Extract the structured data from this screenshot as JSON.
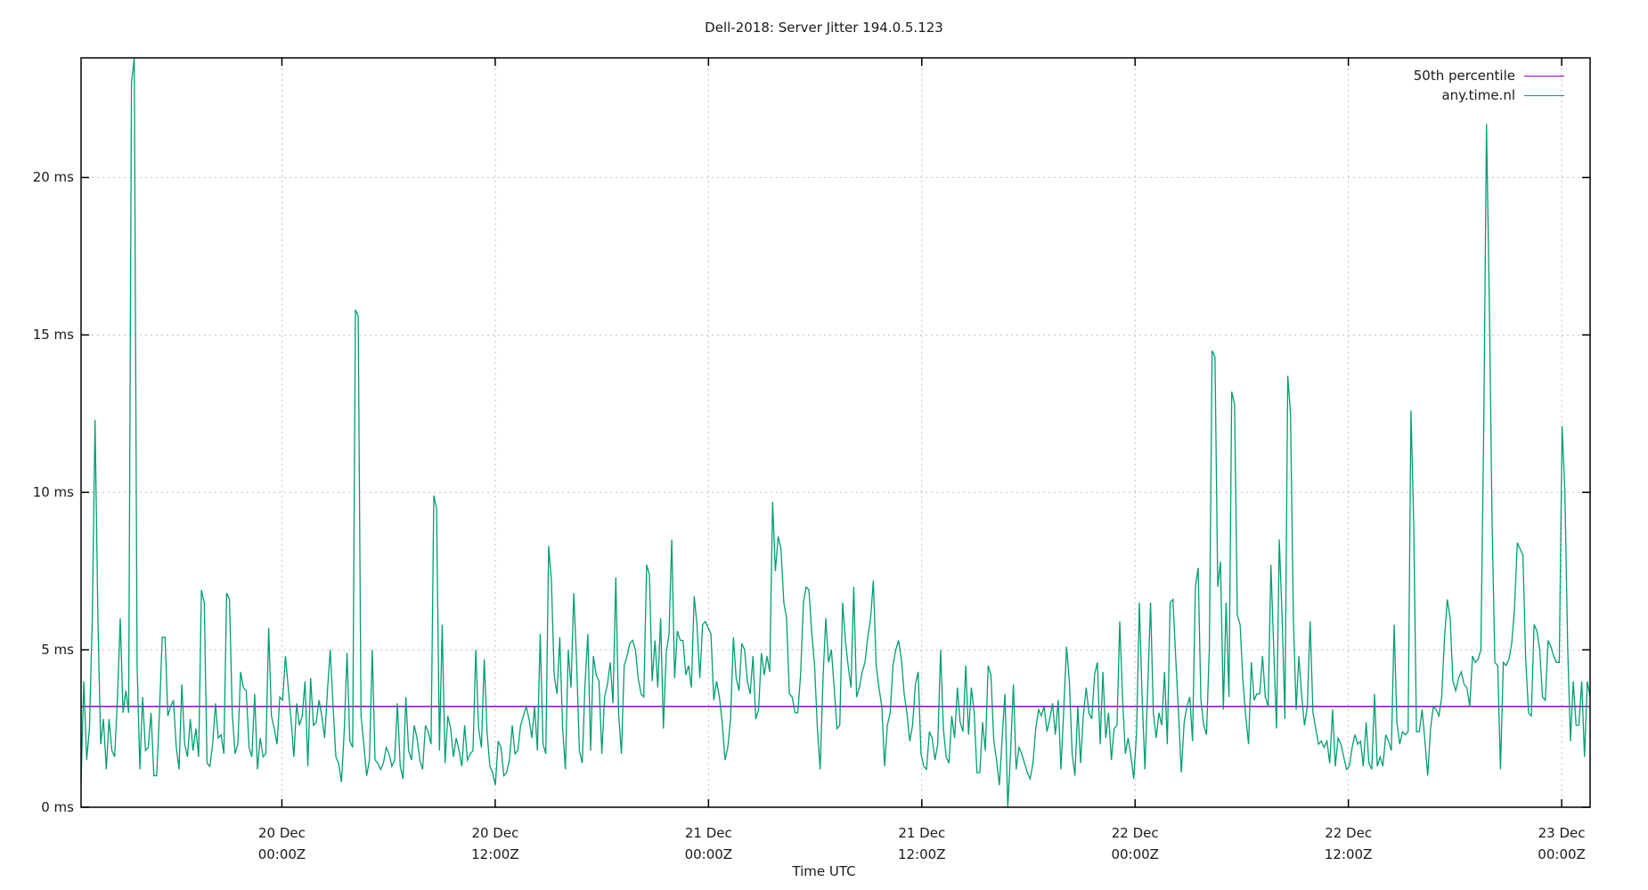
{
  "title": "Dell-2018: Server Jitter 194.0.5.123",
  "xlabel": "Time UTC",
  "legend": [
    {
      "label": "50th percentile",
      "color": "#9400d3"
    },
    {
      "label": "any.time.nl",
      "color": "#009e73"
    }
  ],
  "y_ticks": [
    {
      "label": "0 ms",
      "value": 0
    },
    {
      "label": "5 ms",
      "value": 5
    },
    {
      "label": "10 ms",
      "value": 10
    },
    {
      "label": "15 ms",
      "value": 15
    },
    {
      "label": "20 ms",
      "value": 20
    }
  ],
  "x_ticks": [
    {
      "line1": "20 Dec",
      "line2": "00:00Z",
      "hours": 0
    },
    {
      "line1": "20 Dec",
      "line2": "12:00Z",
      "hours": 12
    },
    {
      "line1": "21 Dec",
      "line2": "00:00Z",
      "hours": 24
    },
    {
      "line1": "21 Dec",
      "line2": "12:00Z",
      "hours": 36
    },
    {
      "line1": "22 Dec",
      "line2": "00:00Z",
      "hours": 48
    },
    {
      "line1": "22 Dec",
      "line2": "12:00Z",
      "hours": 60
    },
    {
      "line1": "23 Dec",
      "line2": "00:00Z",
      "hours": 72
    }
  ],
  "chart_data": {
    "type": "line",
    "title": "Dell-2018: Server Jitter 194.0.5.123",
    "xlabel": "Time UTC",
    "ylabel": "",
    "ylim": [
      0,
      23.8
    ],
    "xlim_hours_from_20Dec0000Z": [
      -11.3,
      73.6
    ],
    "grid": true,
    "legend_position": "top-right",
    "series": [
      {
        "name": "50th percentile",
        "color": "#9400d3",
        "constant_value": 3.2
      },
      {
        "name": "any.time.nl",
        "color": "#009e73",
        "x_start_hours": -11.3,
        "x_end_hours": 73.6,
        "values": [
          0.8,
          4.0,
          1.5,
          2.5,
          6.0,
          12.3,
          6.0,
          2.0,
          2.8,
          1.2,
          2.8,
          1.8,
          1.6,
          3.5,
          6.0,
          3.0,
          3.7,
          3.0,
          23.0,
          23.8,
          4.5,
          1.2,
          3.5,
          1.8,
          1.9,
          3.0,
          1.0,
          1.0,
          3.0,
          5.4,
          5.4,
          2.9,
          3.2,
          3.4,
          1.9,
          1.2,
          3.9,
          2.0,
          1.6,
          2.8,
          1.8,
          2.5,
          1.6,
          6.9,
          6.5,
          1.4,
          1.3,
          2.0,
          3.3,
          2.2,
          2.3,
          1.7,
          6.8,
          6.6,
          3.0,
          1.7,
          2.0,
          4.3,
          3.8,
          3.7,
          1.9,
          1.6,
          3.6,
          1.2,
          2.2,
          1.6,
          1.7,
          5.7,
          2.9,
          2.5,
          2.0,
          3.5,
          3.4,
          4.8,
          3.8,
          2.8,
          1.6,
          3.3,
          2.6,
          2.9,
          4.0,
          1.3,
          4.1,
          2.6,
          2.7,
          3.4,
          2.9,
          2.2,
          3.7,
          5.0,
          3.2,
          1.6,
          1.4,
          0.8,
          2.4,
          4.9,
          2.1,
          1.9,
          15.8,
          15.6,
          2.9,
          2.0,
          1.0,
          1.5,
          5.0,
          1.5,
          1.4,
          1.2,
          1.4,
          1.9,
          1.7,
          1.3,
          1.5,
          3.3,
          1.3,
          0.9,
          3.5,
          1.8,
          1.5,
          2.6,
          2.2,
          1.5,
          1.2,
          2.6,
          2.4,
          2.0,
          9.9,
          9.5,
          1.8,
          5.8,
          1.4,
          2.9,
          2.5,
          1.6,
          2.2,
          1.8,
          1.3,
          2.6,
          1.5,
          1.7,
          1.8,
          5.0,
          2.5,
          1.9,
          4.7,
          2.4,
          1.3,
          1.1,
          0.7,
          2.1,
          1.9,
          1.0,
          1.1,
          1.5,
          2.6,
          1.7,
          1.8,
          2.6,
          2.9,
          3.2,
          2.8,
          2.2,
          3.2,
          1.8,
          5.5,
          2.0,
          1.7,
          8.3,
          7.2,
          4.2,
          3.6,
          5.4,
          2.5,
          1.2,
          5.0,
          3.8,
          6.8,
          4.6,
          1.8,
          1.4,
          3.9,
          5.5,
          1.8,
          4.8,
          4.2,
          4.0,
          1.7,
          3.5,
          3.9,
          4.6,
          3.3,
          7.3,
          3.0,
          1.7,
          4.5,
          4.8,
          5.2,
          5.3,
          5.0,
          4.1,
          3.6,
          3.5,
          7.7,
          7.4,
          4.0,
          5.3,
          3.8,
          6.0,
          2.5,
          4.9,
          5.5,
          8.5,
          4.1,
          5.6,
          5.3,
          5.3,
          4.2,
          4.5,
          3.8,
          6.7,
          5.8,
          4.1,
          5.8,
          5.9,
          5.7,
          5.5,
          3.4,
          4.0,
          3.5,
          2.7,
          1.5,
          1.9,
          2.8,
          5.4,
          4.1,
          3.7,
          5.2,
          5.0,
          4.0,
          3.6,
          4.8,
          2.8,
          3.1,
          4.9,
          4.2,
          4.8,
          4.3,
          9.7,
          7.5,
          8.6,
          8.2,
          6.5,
          6.0,
          3.6,
          3.5,
          3.0,
          3.0,
          4.2,
          6.5,
          7.0,
          6.9,
          5.5,
          4.5,
          2.5,
          1.2,
          4.1,
          6.0,
          4.6,
          5.0,
          3.8,
          2.5,
          2.6,
          6.5,
          5.3,
          4.5,
          3.8,
          7.0,
          3.5,
          3.8,
          4.3,
          4.6,
          5.4,
          6.0,
          7.2,
          4.5,
          3.8,
          3.2,
          1.3,
          2.6,
          3.0,
          4.5,
          5.0,
          5.3,
          4.7,
          3.6,
          3.0,
          2.1,
          2.6,
          3.9,
          4.3,
          1.7,
          1.3,
          1.2,
          2.4,
          2.2,
          1.5,
          2.0,
          5.0,
          2.5,
          1.6,
          1.4,
          2.9,
          2.2,
          3.8,
          2.7,
          2.4,
          4.5,
          2.3,
          3.8,
          3.0,
          1.1,
          1.1,
          2.7,
          1.8,
          4.5,
          4.2,
          2.1,
          1.5,
          0.7,
          2.2,
          3.6,
          0.0,
          1.7,
          3.9,
          1.2,
          1.9,
          1.7,
          1.4,
          1.1,
          0.9,
          1.4,
          2.5,
          3.1,
          2.9,
          3.2,
          2.4,
          2.8,
          3.3,
          2.3,
          3.4,
          1.2,
          3.1,
          5.1,
          4.0,
          1.7,
          1.0,
          3.2,
          1.4,
          2.9,
          3.8,
          3.0,
          2.8,
          4.2,
          4.6,
          2.0,
          4.3,
          2.2,
          3.0,
          1.5,
          2.5,
          2.6,
          5.9,
          3.5,
          1.7,
          2.2,
          1.6,
          0.9,
          2.4,
          6.5,
          3.5,
          1.2,
          3.8,
          6.5,
          3.0,
          2.2,
          3.0,
          2.6,
          4.3,
          2.0,
          6.5,
          6.6,
          4.7,
          3.0,
          1.1,
          2.7,
          3.2,
          3.5,
          2.1,
          7.0,
          7.6,
          3.4,
          2.6,
          2.3,
          5.1,
          14.5,
          14.3,
          7.0,
          7.8,
          3.1,
          6.5,
          3.5,
          13.2,
          12.8,
          6.1,
          5.8,
          4.0,
          2.9,
          2.0,
          4.6,
          3.4,
          3.6,
          3.6,
          4.8,
          3.5,
          3.2,
          7.7,
          5.0,
          2.5,
          8.5,
          6.0,
          2.8,
          13.7,
          12.5,
          6.0,
          3.1,
          4.8,
          3.5,
          2.6,
          3.2,
          5.9,
          3.0,
          2.5,
          2.0,
          2.1,
          1.9,
          2.1,
          1.4,
          3.1,
          1.3,
          2.2,
          2.0,
          1.6,
          1.2,
          1.3,
          1.9,
          2.3,
          2.0,
          2.1,
          1.3,
          2.7,
          1.4,
          1.2,
          3.6,
          1.3,
          1.6,
          1.3,
          2.3,
          2.1,
          1.8,
          5.8,
          2.7,
          2.0,
          2.4,
          2.3,
          2.4,
          12.6,
          9.0,
          2.4,
          2.4,
          3.1,
          2.1,
          1.0,
          2.5,
          3.2,
          3.1,
          2.9,
          3.5,
          5.4,
          6.6,
          6.0,
          4.0,
          3.7,
          4.1,
          4.3,
          3.9,
          3.8,
          3.2,
          4.8,
          4.6,
          4.7,
          5.0,
          12.0,
          21.7,
          16.0,
          9.0,
          4.6,
          4.5,
          1.2,
          4.6,
          4.5,
          4.7,
          5.2,
          6.3,
          8.4,
          8.2,
          8.0,
          4.7,
          3.0,
          2.9,
          5.8,
          5.6,
          5.0,
          3.5,
          3.4,
          5.3,
          5.1,
          4.8,
          4.6,
          4.6,
          12.1,
          10.0,
          5.0,
          2.1,
          4.0,
          2.6,
          2.6,
          4.0,
          1.6,
          4.0,
          3.5
        ]
      }
    ]
  }
}
